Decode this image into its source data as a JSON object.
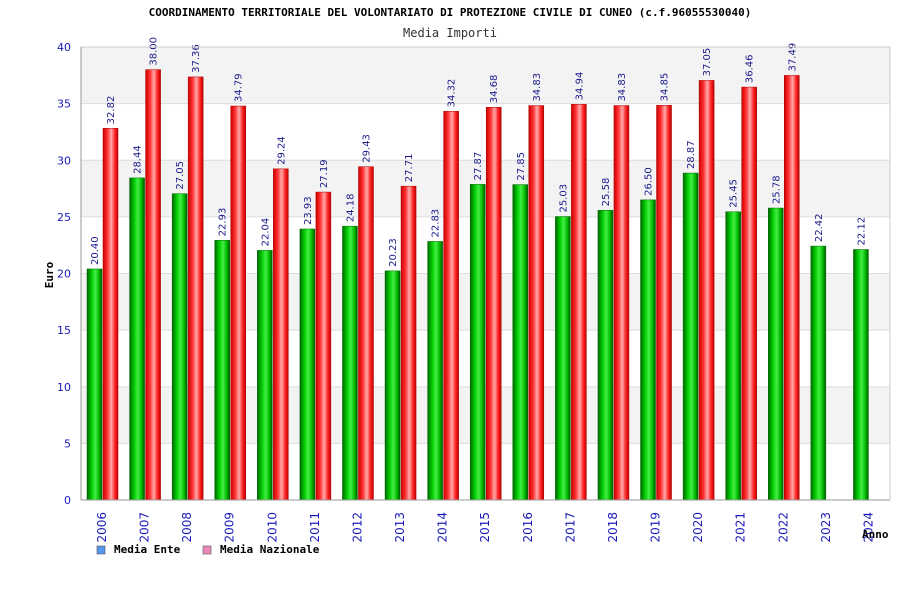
{
  "chart_data": {
    "type": "bar",
    "title": "COORDINAMENTO TERRITORIALE DEL VOLONTARIATO DI PROTEZIONE CIVILE DI CUNEO (c.f.96055530040)",
    "subtitle": "Media Importi",
    "xlabel": "Anno",
    "ylabel": "Euro",
    "ylim": [
      0,
      40
    ],
    "yticks": [
      0,
      5,
      10,
      15,
      20,
      25,
      30,
      35,
      40
    ],
    "grid": true,
    "legend_position": "bottom-left",
    "categories": [
      "2006",
      "2007",
      "2008",
      "2009",
      "2010",
      "2011",
      "2012",
      "2013",
      "2014",
      "2015",
      "2016",
      "2017",
      "2018",
      "2019",
      "2020",
      "2021",
      "2022",
      "2023",
      "2024"
    ],
    "series": [
      {
        "name": "Media Ente",
        "color": "#00aa00",
        "legend_color": "#5599ee",
        "values": [
          20.4,
          28.44,
          27.05,
          22.93,
          22.04,
          23.93,
          24.18,
          20.23,
          22.83,
          27.87,
          27.85,
          25.03,
          25.58,
          26.5,
          28.87,
          25.45,
          25.78,
          22.42,
          22.12
        ],
        "labels": [
          "20.40",
          "28.44",
          "27.05",
          "22.93",
          "22.04",
          "23.93",
          "24.18",
          "20.23",
          "22.83",
          "27.87",
          "27.85",
          "25.03",
          "25.58",
          "26.50",
          "28.87",
          "25.45",
          "25.78",
          "22.42",
          "22.12"
        ]
      },
      {
        "name": "Media Nazionale",
        "color": "#ee1111",
        "legend_color": "#ee88bb",
        "values": [
          32.82,
          38.0,
          37.36,
          34.79,
          29.24,
          27.19,
          29.43,
          27.71,
          34.32,
          34.68,
          34.83,
          34.94,
          34.83,
          34.85,
          37.05,
          36.46,
          37.49,
          null,
          null
        ],
        "labels": [
          "32.82",
          "38.00",
          "37.36",
          "34.79",
          "29.24",
          "27.19",
          "29.43",
          "27.71",
          "34.32",
          "34.68",
          "34.83",
          "34.94",
          "34.83",
          "34.85",
          "37.05",
          "36.46",
          "37.49",
          "",
          ""
        ]
      }
    ]
  }
}
